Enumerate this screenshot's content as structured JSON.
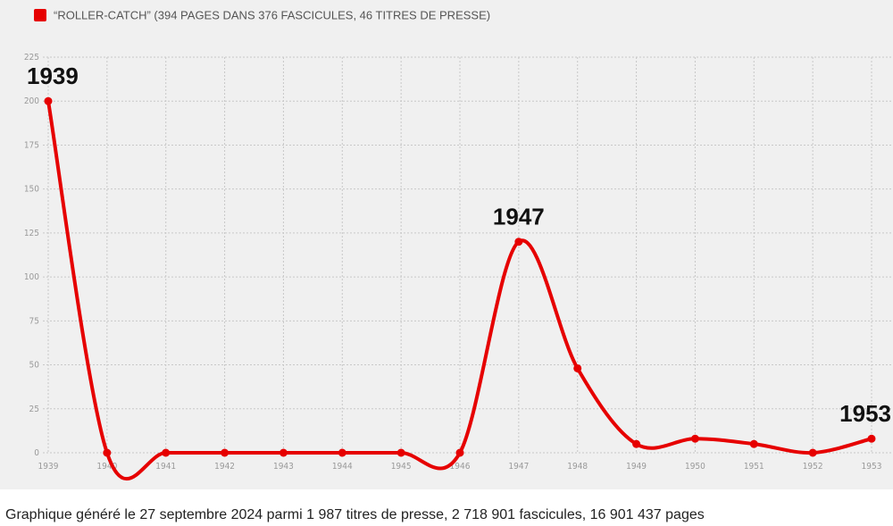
{
  "chart_data": {
    "type": "line",
    "legend": "“ROLLER-CATCH” (394 PAGES DANS 376 FASCICULES, 46 TITRES DE PRESSE)",
    "x": [
      1939,
      1940,
      1941,
      1942,
      1943,
      1944,
      1945,
      1946,
      1947,
      1948,
      1949,
      1950,
      1951,
      1952,
      1953
    ],
    "series": [
      {
        "name": "“ROLLER-CATCH” (394 PAGES DANS 376 FASCICULES, 46 TITRES DE PRESSE)",
        "color": "#e60000",
        "values": [
          200,
          0,
          0,
          0,
          0,
          0,
          0,
          0,
          120,
          48,
          5,
          8,
          5,
          0,
          8
        ]
      }
    ],
    "xlim": [
      1939,
      1953
    ],
    "xticks": [
      1939,
      1940,
      1941,
      1942,
      1943,
      1944,
      1945,
      1946,
      1947,
      1948,
      1949,
      1950,
      1951,
      1952,
      1953
    ],
    "ylim": [
      0,
      225
    ],
    "yticks": [
      0,
      25,
      50,
      75,
      100,
      125,
      150,
      175,
      200,
      225
    ],
    "grid": true,
    "annotations": [
      {
        "text": "1939",
        "x": 1939
      },
      {
        "text": "1947",
        "x": 1947
      },
      {
        "text": "1953",
        "x": 1953
      }
    ]
  },
  "caption": "Graphique généré le 27 septembre 2024 parmi 1 987 titres de presse, 2 718 901 fascicules, 16 901 437 pages"
}
